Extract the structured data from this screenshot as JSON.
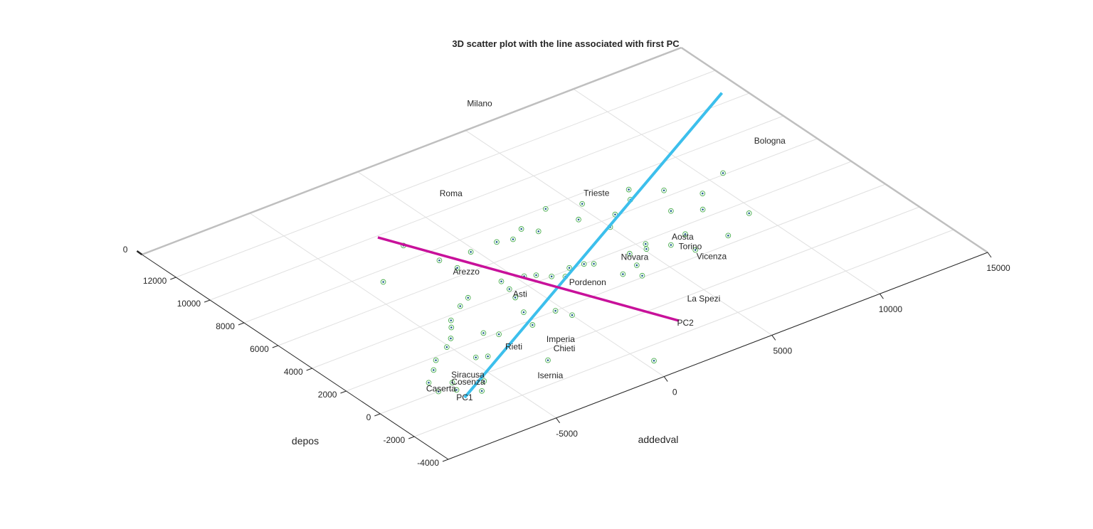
{
  "chart_data": {
    "type": "scatter",
    "projection": "3d",
    "title": "3D scatter plot with the line associated with first PC",
    "xlabel": "addedval",
    "ylabel": "depos",
    "xlim": [
      -10000,
      15000
    ],
    "ylim": [
      -4000,
      14000
    ],
    "zlim": [
      0,
      0
    ],
    "xticks": [
      "-5000",
      "0",
      "5000",
      "10000",
      "15000"
    ],
    "yticks": [
      "-4000",
      "-2000",
      "0",
      "2000",
      "4000",
      "6000",
      "8000",
      "10000",
      "12000"
    ],
    "zticks": [
      "0"
    ],
    "grid": true,
    "colors": {
      "axis": "#262626",
      "box": "#bfbfbf",
      "grid": "#e0e0e0",
      "pc1": "#3cbfec",
      "pc2": "#c8119a",
      "marker_ring": "#4caf50",
      "marker_dot": "#1f5f8b"
    },
    "city_labels": [
      {
        "name": "Milano",
        "x": 6600,
        "y": 15200
      },
      {
        "name": "Bologna",
        "x": 13500,
        "y": 6900
      },
      {
        "name": "Roma",
        "x": 1800,
        "y": 10800
      },
      {
        "name": "Trieste",
        "x": 6100,
        "y": 7700
      },
      {
        "name": "Aosta",
        "x": 6700,
        "y": 3400
      },
      {
        "name": "Torino",
        "x": 6500,
        "y": 2700
      },
      {
        "name": "Novara",
        "x": 4400,
        "y": 3300
      },
      {
        "name": "Vicenza",
        "x": 6700,
        "y": 1700
      },
      {
        "name": "Arezzo",
        "x": -1200,
        "y": 6100
      },
      {
        "name": "Pordenon",
        "x": 1900,
        "y": 2900
      },
      {
        "name": "La Spezi",
        "x": 4600,
        "y": -500
      },
      {
        "name": "Asti",
        "x": -600,
        "y": 3700
      },
      {
        "name": "Imperia",
        "x": -1400,
        "y": 300
      },
      {
        "name": "Chieti",
        "x": -1700,
        "y": -300
      },
      {
        "name": "Rieti",
        "x": -3100,
        "y": 900
      },
      {
        "name": "Isernia",
        "x": -3300,
        "y": -1500
      },
      {
        "name": "Siracusa",
        "x": -5700,
        "y": 300
      },
      {
        "name": "Cosenza",
        "x": -6000,
        "y": -100
      },
      {
        "name": "Caserta",
        "x": -7100,
        "y": 100
      }
    ],
    "points": [
      {
        "x": -7200,
        "y": 700
      },
      {
        "x": -7300,
        "y": 0
      },
      {
        "x": -6700,
        "y": -300
      },
      {
        "x": -6500,
        "y": 200
      },
      {
        "x": -6000,
        "y": -900
      },
      {
        "x": -6500,
        "y": 1300
      },
      {
        "x": -5500,
        "y": -400
      },
      {
        "x": -6000,
        "y": 1800
      },
      {
        "x": -5100,
        "y": 2300
      },
      {
        "x": -4600,
        "y": 2700
      },
      {
        "x": -4700,
        "y": 1100
      },
      {
        "x": -4300,
        "y": 900
      },
      {
        "x": -4100,
        "y": 3300
      },
      {
        "x": -3800,
        "y": 3700
      },
      {
        "x": -3400,
        "y": 2300
      },
      {
        "x": -3000,
        "y": 1900
      },
      {
        "x": -2900,
        "y": 4300
      },
      {
        "x": -2300,
        "y": 4600
      },
      {
        "x": -2700,
        "y": -600
      },
      {
        "x": -1600,
        "y": 1700
      },
      {
        "x": -1300,
        "y": 2600
      },
      {
        "x": -900,
        "y": 3600
      },
      {
        "x": -700,
        "y": 4200
      },
      {
        "x": -600,
        "y": 4800
      },
      {
        "x": -300,
        "y": 2000
      },
      {
        "x": 0,
        "y": 1400
      },
      {
        "x": 400,
        "y": -2900
      },
      {
        "x": -4100,
        "y": 7300
      },
      {
        "x": -1900,
        "y": 8900
      },
      {
        "x": -1500,
        "y": 7300
      },
      {
        "x": -1300,
        "y": 6500
      },
      {
        "x": -200,
        "y": 7100
      },
      {
        "x": 300,
        "y": 4600
      },
      {
        "x": 700,
        "y": 4400
      },
      {
        "x": 1100,
        "y": 4000
      },
      {
        "x": 1500,
        "y": 3700
      },
      {
        "x": 2000,
        "y": 4100
      },
      {
        "x": 2600,
        "y": 4000
      },
      {
        "x": 2900,
        "y": 3800
      },
      {
        "x": 3300,
        "y": 2600
      },
      {
        "x": 3800,
        "y": 2100
      },
      {
        "x": 4100,
        "y": 2800
      },
      {
        "x": 4400,
        "y": 3600
      },
      {
        "x": 5100,
        "y": 3500
      },
      {
        "x": 5300,
        "y": 3800
      },
      {
        "x": 6000,
        "y": 3200
      },
      {
        "x": 6500,
        "y": 2400
      },
      {
        "x": 6900,
        "y": 3500
      },
      {
        "x": 8100,
        "y": 2500
      },
      {
        "x": 8500,
        "y": 4500
      },
      {
        "x": 9200,
        "y": 5400
      },
      {
        "x": 9700,
        "y": 3300
      },
      {
        "x": 8200,
        "y": 6400
      },
      {
        "x": 7200,
        "y": 7200
      },
      {
        "x": 1000,
        "y": 7100
      },
      {
        "x": 1600,
        "y": 6900
      },
      {
        "x": 2300,
        "y": 7300
      },
      {
        "x": 2700,
        "y": 6800
      },
      {
        "x": 3900,
        "y": 7900
      },
      {
        "x": 4400,
        "y": 6600
      },
      {
        "x": 5000,
        "y": 5500
      },
      {
        "x": 5200,
        "y": 7400
      },
      {
        "x": 5700,
        "y": 6100
      },
      {
        "x": 6800,
        "y": 6600
      },
      {
        "x": 7500,
        "y": 5100
      },
      {
        "x": 10700,
        "y": 6100
      }
    ],
    "pc1": {
      "label": "PC1",
      "start": {
        "x": -6800,
        "y": -900
      },
      "end": {
        "x": 14200,
        "y": 10600
      }
    },
    "pc2": {
      "label": "PC2",
      "start": {
        "x": -2300,
        "y": 9900
      },
      "end": {
        "x": 2900,
        "y": -1200
      }
    }
  }
}
